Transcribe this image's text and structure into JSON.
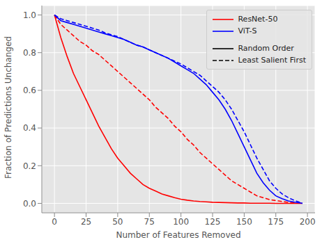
{
  "chart_data": {
    "type": "line",
    "xlabel": "Number of Features Removed",
    "ylabel": "Fraction of Predictions Unchanged",
    "x": [
      0,
      5,
      10,
      15,
      20,
      25,
      30,
      35,
      40,
      45,
      50,
      55,
      60,
      65,
      70,
      75,
      80,
      85,
      90,
      95,
      100,
      105,
      110,
      115,
      120,
      125,
      130,
      135,
      140,
      145,
      150,
      155,
      160,
      165,
      170,
      175,
      180,
      185,
      190,
      195,
      196
    ],
    "xlim": [
      -10,
      206
    ],
    "xticks": [
      0,
      25,
      50,
      75,
      100,
      125,
      150,
      175,
      200
    ],
    "ylim": [
      -0.05,
      1.05
    ],
    "yticks": [
      {
        "value": 0,
        "label": "0.0"
      },
      {
        "value": 0.2,
        "label": "0.2"
      },
      {
        "value": 0.4,
        "label": "0.4"
      },
      {
        "value": 0.6,
        "label": "0.6"
      },
      {
        "value": 0.8,
        "label": "0.8"
      },
      {
        "value": 1,
        "label": "1.0"
      }
    ],
    "grid": true,
    "legend": "upper right",
    "line_styles": [
      {
        "name": "Random Order",
        "line_style": "solid"
      },
      {
        "name": "Least Salient First",
        "line_style": "dashed"
      }
    ],
    "series": [
      {
        "name": "ResNet-50",
        "color": "#ff0000",
        "line_style": "solid",
        "values": [
          1.0,
          0.88,
          0.78,
          0.69,
          0.62,
          0.55,
          0.48,
          0.41,
          0.35,
          0.29,
          0.24,
          0.2,
          0.16,
          0.13,
          0.1,
          0.08,
          0.065,
          0.05,
          0.04,
          0.03,
          0.022,
          0.017,
          0.013,
          0.01,
          0.008,
          0.006,
          0.005,
          0.004,
          0.003,
          0.002,
          0.002,
          0.001,
          0.001,
          0.001,
          0.001,
          0.0,
          0.0,
          0.0,
          0.0,
          0.0,
          0.0
        ]
      },
      {
        "name": "ResNet-50",
        "color": "#ff0000",
        "line_style": "dashed",
        "values": [
          1.0,
          0.95,
          0.92,
          0.89,
          0.86,
          0.84,
          0.81,
          0.79,
          0.76,
          0.73,
          0.7,
          0.67,
          0.64,
          0.61,
          0.58,
          0.55,
          0.51,
          0.48,
          0.45,
          0.41,
          0.38,
          0.34,
          0.31,
          0.27,
          0.24,
          0.21,
          0.18,
          0.15,
          0.12,
          0.1,
          0.08,
          0.06,
          0.04,
          0.03,
          0.02,
          0.015,
          0.01,
          0.005,
          0.003,
          0.001,
          0.0
        ]
      },
      {
        "name": "ViT-S",
        "color": "#0000ff",
        "line_style": "solid",
        "values": [
          1.0,
          0.97,
          0.96,
          0.95,
          0.94,
          0.93,
          0.92,
          0.91,
          0.9,
          0.89,
          0.88,
          0.87,
          0.855,
          0.84,
          0.83,
          0.815,
          0.8,
          0.785,
          0.77,
          0.75,
          0.73,
          0.71,
          0.69,
          0.66,
          0.63,
          0.59,
          0.55,
          0.5,
          0.44,
          0.37,
          0.3,
          0.23,
          0.16,
          0.11,
          0.07,
          0.04,
          0.025,
          0.013,
          0.006,
          0.002,
          0.0
        ]
      },
      {
        "name": "ViT-S",
        "color": "#0000ff",
        "line_style": "dashed",
        "values": [
          1.0,
          0.98,
          0.97,
          0.96,
          0.95,
          0.94,
          0.93,
          0.92,
          0.905,
          0.895,
          0.885,
          0.87,
          0.855,
          0.84,
          0.83,
          0.815,
          0.8,
          0.785,
          0.77,
          0.755,
          0.74,
          0.72,
          0.7,
          0.68,
          0.65,
          0.62,
          0.59,
          0.55,
          0.5,
          0.44,
          0.38,
          0.31,
          0.24,
          0.18,
          0.12,
          0.08,
          0.05,
          0.03,
          0.015,
          0.003,
          0.0
        ]
      }
    ]
  }
}
